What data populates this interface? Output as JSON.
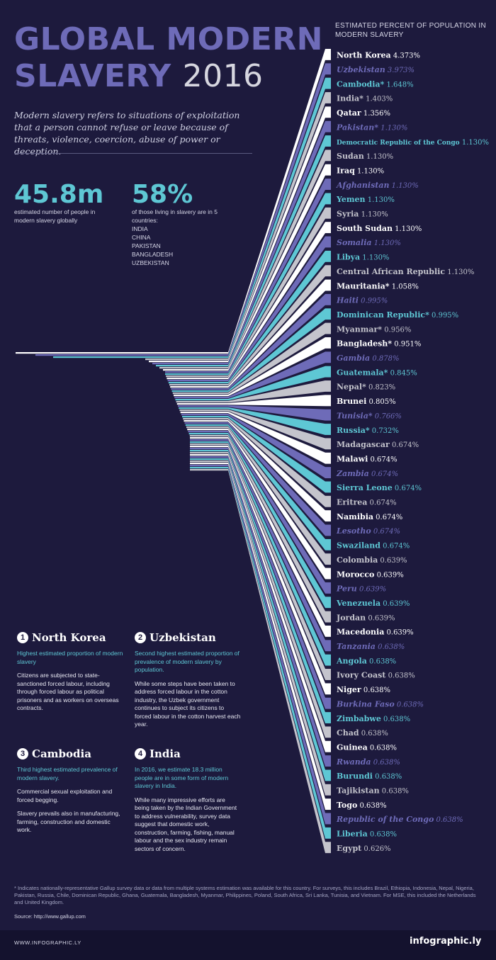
{
  "title": {
    "line1": "GLOBAL MODERN",
    "line2": "SLAVERY",
    "year": "2016"
  },
  "intro": "Modern slavery refers to situations of exploitation that a person cannot refuse or leave because of threats, violence, coercion, abuse of power or deception.",
  "stats": {
    "total": {
      "value": "45.8m",
      "caption": "estimated number of people in modern slavery globally"
    },
    "share": {
      "value": "58%",
      "caption": "of those living in slavery are in 5 countries:",
      "countries": [
        "INDIA",
        "CHINA",
        "PAKISTAN",
        "BANGLADESH",
        "UZBEKISTAN"
      ]
    }
  },
  "chart_title": "ESTIMATED PERCENT OF POPULATION IN MODERN SLAVERY",
  "colors": {
    "background": "#1d1a3d",
    "white": "#ffffff",
    "purple": "#6e6bb8",
    "teal": "#5ec7d4",
    "grey": "#c4c4cc"
  },
  "chart_data": {
    "type": "bar",
    "title": "ESTIMATED PERCENT OF POPULATION IN MODERN SLAVERY",
    "unit": "%",
    "categories": [
      {
        "name": "North Korea",
        "value": "4.373%",
        "color": "white"
      },
      {
        "name": "Uzbekistan",
        "value": "3.973%",
        "color": "purple"
      },
      {
        "name": "Cambodia*",
        "value": "1.648%",
        "color": "teal"
      },
      {
        "name": "India*",
        "value": "1.403%",
        "color": "grey"
      },
      {
        "name": "Qatar",
        "value": "1.356%",
        "color": "white"
      },
      {
        "name": "Pakistan*",
        "value": "1.130%",
        "color": "purple"
      },
      {
        "name": "Democratic Republic of the Congo",
        "value": "1.130%",
        "color": "teal"
      },
      {
        "name": "Sudan",
        "value": "1.130%",
        "color": "grey"
      },
      {
        "name": "Iraq",
        "value": "1.130%",
        "color": "white"
      },
      {
        "name": "Afghanistan",
        "value": "1.130%",
        "color": "purple"
      },
      {
        "name": "Yemen",
        "value": "1.130%",
        "color": "teal"
      },
      {
        "name": "Syria",
        "value": "1.130%",
        "color": "grey"
      },
      {
        "name": "South Sudan",
        "value": "1.130%",
        "color": "white"
      },
      {
        "name": "Somalia",
        "value": "1.130%",
        "color": "purple"
      },
      {
        "name": "Libya",
        "value": "1.130%",
        "color": "teal"
      },
      {
        "name": "Central African Republic",
        "value": "1.130%",
        "color": "grey"
      },
      {
        "name": "Mauritania*",
        "value": "1.058%",
        "color": "white"
      },
      {
        "name": "Haiti",
        "value": "0.995%",
        "color": "purple"
      },
      {
        "name": "Dominican Republic*",
        "value": "0.995%",
        "color": "teal"
      },
      {
        "name": "Myanmar*",
        "value": "0.956%",
        "color": "grey"
      },
      {
        "name": "Bangladesh*",
        "value": "0.951%",
        "color": "white"
      },
      {
        "name": "Gambia",
        "value": "0.878%",
        "color": "purple"
      },
      {
        "name": "Guatemala*",
        "value": "0.845%",
        "color": "teal"
      },
      {
        "name": "Nepal*",
        "value": "0.823%",
        "color": "grey"
      },
      {
        "name": "Brunei",
        "value": "0.805%",
        "color": "white"
      },
      {
        "name": "Tunisia*",
        "value": "0.766%",
        "color": "purple"
      },
      {
        "name": "Russia*",
        "value": "0.732%",
        "color": "teal"
      },
      {
        "name": "Madagascar",
        "value": "0.674%",
        "color": "grey"
      },
      {
        "name": "Malawi",
        "value": "0.674%",
        "color": "white"
      },
      {
        "name": "Zambia",
        "value": "0.674%",
        "color": "purple"
      },
      {
        "name": "Sierra Leone",
        "value": "0.674%",
        "color": "teal"
      },
      {
        "name": "Eritrea",
        "value": "0.674%",
        "color": "grey"
      },
      {
        "name": "Namibia",
        "value": "0.674%",
        "color": "white"
      },
      {
        "name": "Lesotho",
        "value": "0.674%",
        "color": "purple"
      },
      {
        "name": "Swaziland",
        "value": "0.674%",
        "color": "teal"
      },
      {
        "name": "Colombia",
        "value": "0.639%",
        "color": "grey"
      },
      {
        "name": "Morocco",
        "value": "0.639%",
        "color": "white"
      },
      {
        "name": "Peru",
        "value": "0.639%",
        "color": "purple"
      },
      {
        "name": "Venezuela",
        "value": "0.639%",
        "color": "teal"
      },
      {
        "name": "Jordan",
        "value": "0.639%",
        "color": "grey"
      },
      {
        "name": "Macedonia",
        "value": "0.639%",
        "color": "white"
      },
      {
        "name": "Tanzania",
        "value": "0.638%",
        "color": "purple"
      },
      {
        "name": "Angola",
        "value": "0.638%",
        "color": "teal"
      },
      {
        "name": "Ivory Coast",
        "value": "0.638%",
        "color": "grey"
      },
      {
        "name": "Niger",
        "value": "0.638%",
        "color": "white"
      },
      {
        "name": "Burkina Faso",
        "value": "0.638%",
        "color": "purple"
      },
      {
        "name": "Zimbabwe",
        "value": "0.638%",
        "color": "teal"
      },
      {
        "name": "Chad",
        "value": "0.638%",
        "color": "grey"
      },
      {
        "name": "Guinea",
        "value": "0.638%",
        "color": "white"
      },
      {
        "name": "Rwanda",
        "value": "0.638%",
        "color": "purple"
      },
      {
        "name": "Burundi",
        "value": "0.638%",
        "color": "teal"
      },
      {
        "name": "Tajikistan",
        "value": "0.638%",
        "color": "grey"
      },
      {
        "name": "Togo",
        "value": "0.638%",
        "color": "white"
      },
      {
        "name": "Republic of the Congo",
        "value": "0.638%",
        "color": "purple"
      },
      {
        "name": "Liberia",
        "value": "0.638%",
        "color": "teal"
      },
      {
        "name": "Egypt",
        "value": "0.626%",
        "color": "grey"
      }
    ]
  },
  "sections": [
    {
      "num": "1",
      "heading": "North Korea",
      "subtitle": "Highest estimated proportion of modern slavery",
      "body": "Citizens are subjected to state-sanctioned forced labour, including through forced labour as political prisoners and as workers on overseas contracts."
    },
    {
      "num": "2",
      "heading": "Uzbekistan",
      "subtitle": "Second highest estimated proportion of prevalence of modern slavery by population.",
      "body": "While some steps have been taken to address forced labour in the cotton industry, the Uzbek government continues to subject its citizens to forced labour in the cotton harvest each year."
    },
    {
      "num": "3",
      "heading": "Cambodia",
      "subtitle": "Third highest estimated prevalence of modern slavery.",
      "body": "Commercial sexual exploitation and forced begging.",
      "body2": "Slavery prevails also in manufacturing, farming, construction and domestic work."
    },
    {
      "num": "4",
      "heading": "India",
      "subtitle": "In 2016, we estimate 18.3 million people are in some form of modern slavery in India.",
      "body": "While many impressive efforts are being taken by the Indian Government to address vulnerability, survey data suggest that domestic work, construction, farming, fishing, manual labour and the sex industry remain sectors of concern."
    }
  ],
  "footnote": "* Indicates nationally-representative Gallup survey data or data from multiple systems estimation was available for this country. For surveys, this includes Brazil, Ethiopia, Indonesia, Nepal, Nigeria, Pakistan, Russia, Chile, Dominican Republic, Ghana, Guatemala, Bangladesh, Myanmar, Philippines, Poland, South Africa, Sri Lanka, Tunisia, and Vietnam. For MSE, this included the Netherlands and United Kingdom.",
  "source": "Source: http://www.gallup.com",
  "brand_left": "WWW.INFOGRAPHIC.LY",
  "brand_right": "infographic.ly"
}
